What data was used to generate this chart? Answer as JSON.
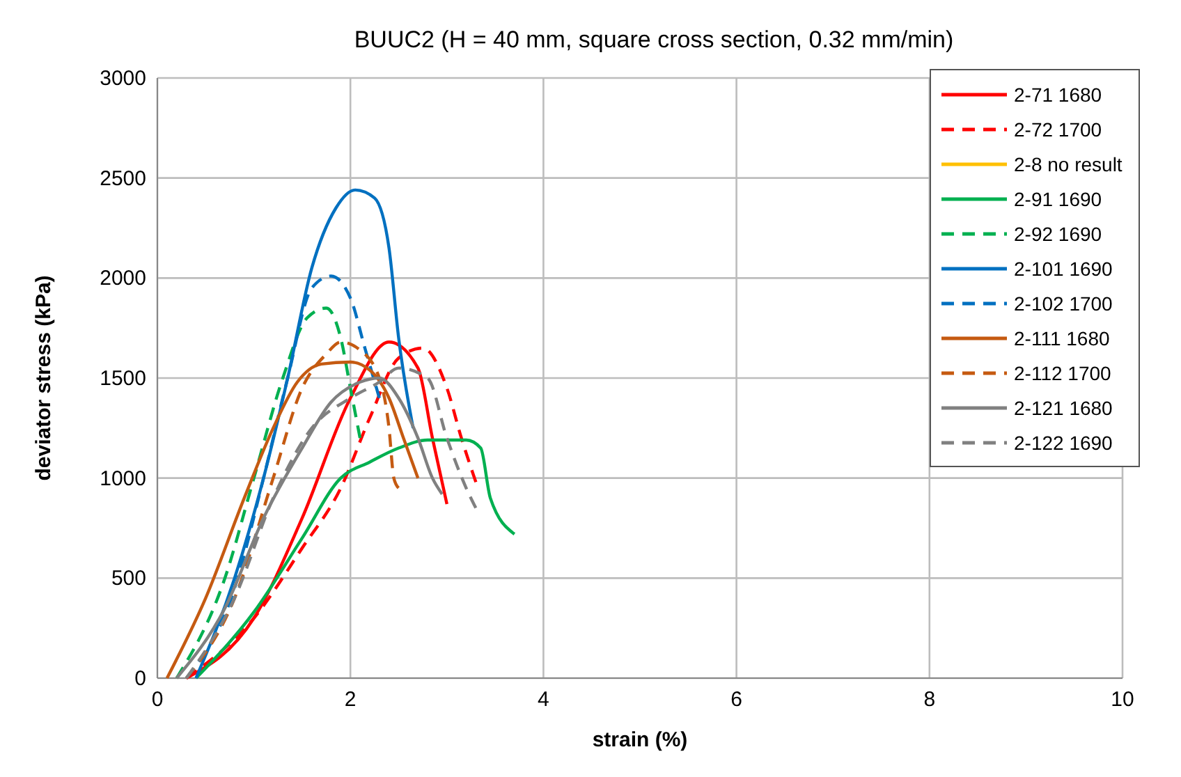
{
  "chart_data": {
    "type": "line",
    "title": "BUUC2 (H = 40 mm, square cross section, 0.32 mm/min)",
    "xlabel": "strain (%)",
    "ylabel": "deviator stress (kPa)",
    "xlim": [
      0,
      10
    ],
    "ylim": [
      0,
      3000
    ],
    "xticks": [
      0,
      2,
      4,
      6,
      8,
      10
    ],
    "yticks": [
      0,
      500,
      1000,
      1500,
      2000,
      2500,
      3000
    ],
    "grid": true,
    "legend": "top right",
    "marker": "none",
    "series": [
      {
        "name": "2-71 1680",
        "color": "#ff0000",
        "line_style": "solid",
        "x": [
          0.3,
          1.0,
          1.5,
          2.0,
          2.4,
          2.7,
          2.85,
          3.0
        ],
        "values": [
          0,
          300,
          800,
          1400,
          1680,
          1550,
          1200,
          870
        ]
      },
      {
        "name": "2-72 1700",
        "color": "#ff0000",
        "line_style": "dashed",
        "x": [
          0.3,
          1.0,
          1.5,
          1.9,
          2.2,
          2.5,
          2.75,
          3.0,
          3.15,
          3.3
        ],
        "values": [
          0,
          300,
          650,
          950,
          1300,
          1600,
          1650,
          1450,
          1200,
          980
        ]
      },
      {
        "name": "2-8 no result",
        "color": "#ffc000",
        "line_style": "solid"
      },
      {
        "name": "2-91 1690",
        "color": "#00b050",
        "line_style": "solid",
        "x": [
          0.4,
          1.0,
          1.5,
          1.9,
          2.2,
          2.5,
          2.8,
          3.2,
          3.35,
          3.45,
          3.7
        ],
        "values": [
          0,
          330,
          700,
          1000,
          1080,
          1150,
          1190,
          1190,
          1150,
          900,
          720
        ]
      },
      {
        "name": "2-92 1690",
        "color": "#00b050",
        "line_style": "dashed",
        "x": [
          0.2,
          0.7,
          1.0,
          1.3,
          1.55,
          1.75,
          1.9,
          2.0,
          2.1
        ],
        "values": [
          0,
          500,
          1000,
          1500,
          1800,
          1850,
          1700,
          1450,
          1200
        ]
      },
      {
        "name": "2-101 1690",
        "color": "#0070c0",
        "line_style": "solid",
        "x": [
          0.4,
          0.8,
          1.1,
          1.35,
          1.6,
          1.85,
          2.05,
          2.25,
          2.4,
          2.5,
          2.65
        ],
        "values": [
          0,
          500,
          1000,
          1500,
          2050,
          2350,
          2440,
          2400,
          2150,
          1700,
          1250
        ]
      },
      {
        "name": "2-102 1700",
        "color": "#0070c0",
        "line_style": "dashed",
        "x": [
          0.3,
          0.8,
          1.1,
          1.35,
          1.6,
          1.8,
          2.0,
          2.15,
          2.3
        ],
        "values": [
          0,
          450,
          1000,
          1500,
          1950,
          2010,
          1900,
          1650,
          1400
        ]
      },
      {
        "name": "2-111 1680",
        "color": "#c55a11",
        "line_style": "solid",
        "x": [
          0.1,
          0.5,
          0.9,
          1.2,
          1.45,
          1.7,
          2.0,
          2.2,
          2.4,
          2.55,
          2.7
        ],
        "values": [
          0,
          400,
          900,
          1250,
          1480,
          1570,
          1580,
          1540,
          1400,
          1200,
          1000
        ]
      },
      {
        "name": "2-112 1700",
        "color": "#c55a11",
        "line_style": "dashed",
        "x": [
          0.3,
          0.8,
          1.2,
          1.5,
          1.75,
          1.9,
          2.1,
          2.3,
          2.4,
          2.45,
          2.5
        ],
        "values": [
          0,
          400,
          1000,
          1450,
          1620,
          1680,
          1640,
          1500,
          1250,
          1000,
          950
        ]
      },
      {
        "name": "2-121 1680",
        "color": "#808080",
        "line_style": "solid",
        "x": [
          0.2,
          0.7,
          1.1,
          1.5,
          1.8,
          2.1,
          2.3,
          2.5,
          2.7,
          2.85,
          2.95
        ],
        "values": [
          0,
          350,
          800,
          1150,
          1380,
          1480,
          1500,
          1400,
          1200,
          1000,
          920
        ]
      },
      {
        "name": "2-122 1690",
        "color": "#808080",
        "line_style": "dashed",
        "x": [
          0.3,
          0.8,
          1.2,
          1.6,
          2.0,
          2.3,
          2.5,
          2.8,
          3.0,
          3.2,
          3.3
        ],
        "values": [
          0,
          400,
          900,
          1250,
          1400,
          1480,
          1550,
          1500,
          1200,
          950,
          850
        ]
      }
    ]
  }
}
